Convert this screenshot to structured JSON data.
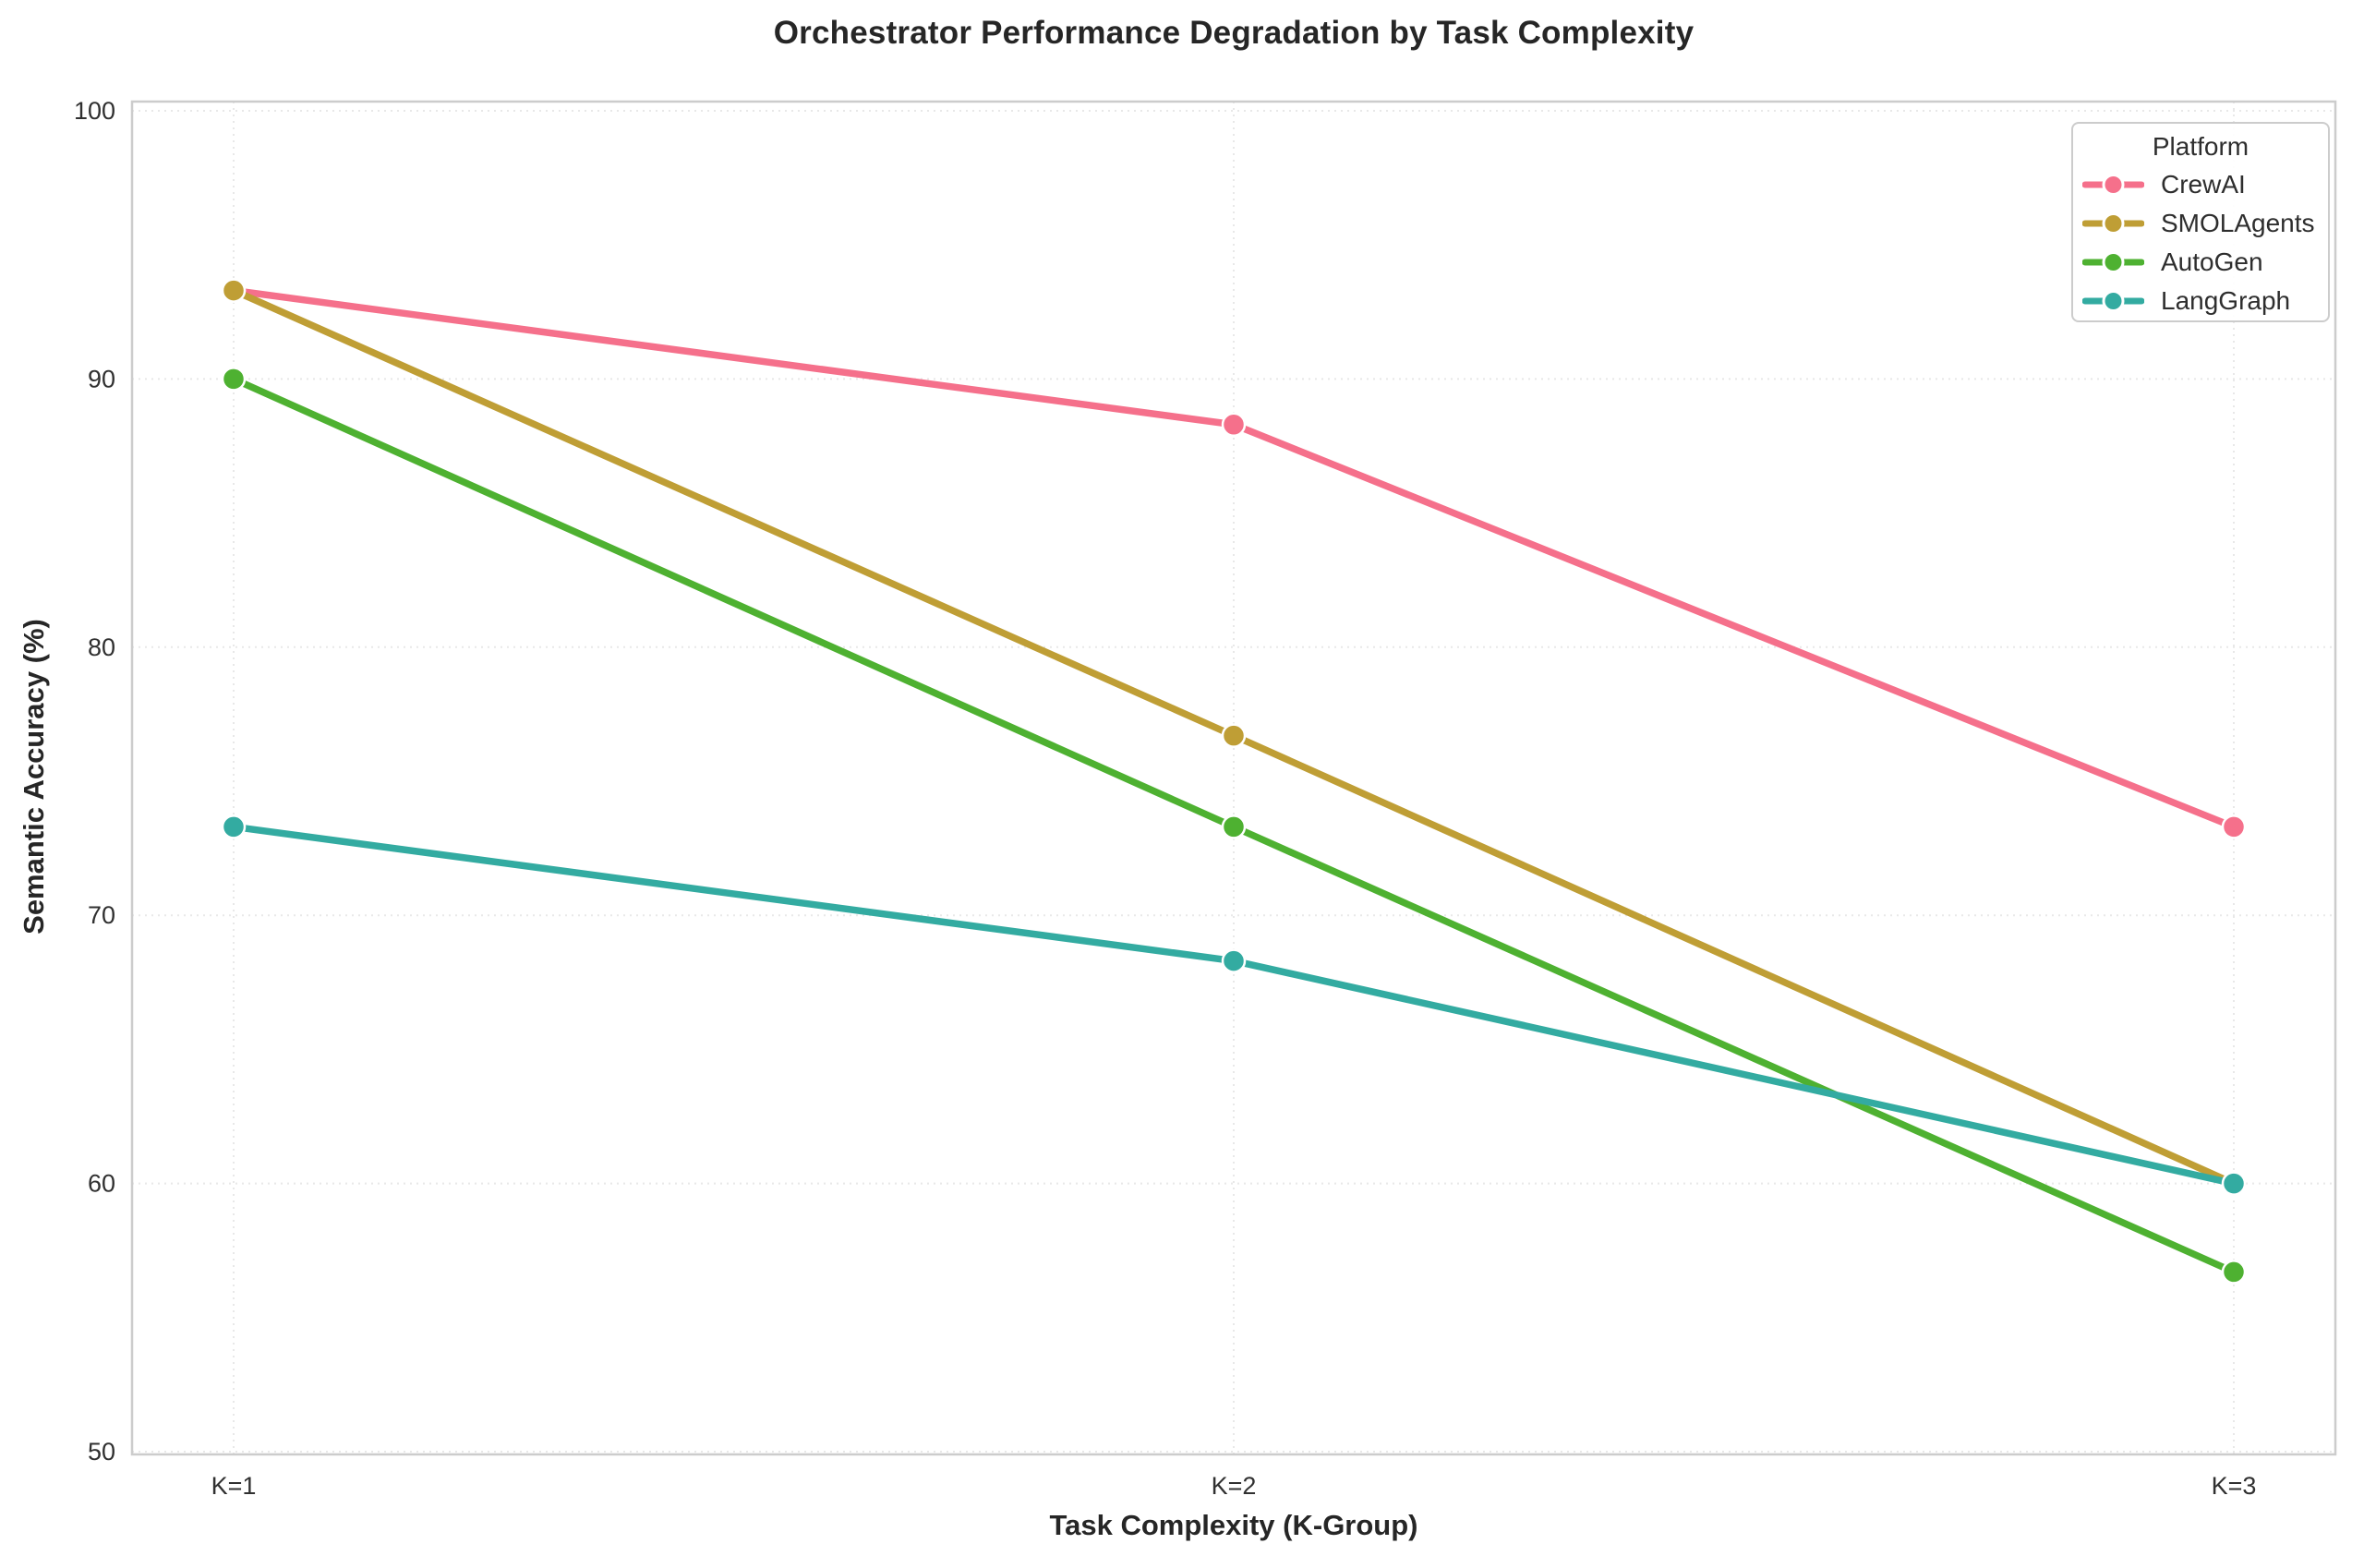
{
  "chart_data": {
    "type": "line",
    "title": "Orchestrator Performance Degradation by Task Complexity",
    "xlabel": "Task Complexity (K-Group)",
    "ylabel": "Semantic Accuracy (%)",
    "categories": [
      "K=1",
      "K=2",
      "K=3"
    ],
    "series": [
      {
        "name": "CrewAI",
        "color": "#f5708b",
        "values": [
          93.3,
          88.3,
          73.3
        ]
      },
      {
        "name": "SMOLAgents",
        "color": "#bf9e35",
        "values": [
          93.3,
          76.7,
          60.0
        ]
      },
      {
        "name": "AutoGen",
        "color": "#4eb131",
        "values": [
          90.0,
          73.3,
          56.7
        ]
      },
      {
        "name": "LangGraph",
        "color": "#33aba1",
        "values": [
          73.3,
          68.3,
          60.0
        ]
      }
    ],
    "ylim": [
      50,
      100
    ],
    "yticks": [
      50,
      60,
      70,
      80,
      90,
      100
    ],
    "grid": true,
    "legend": {
      "title": "Platform",
      "position": "top-right"
    }
  },
  "style_colors": {
    "grid": "#e8e8e8",
    "spine": "#cccccc",
    "marker_edge": "#ffffff"
  }
}
